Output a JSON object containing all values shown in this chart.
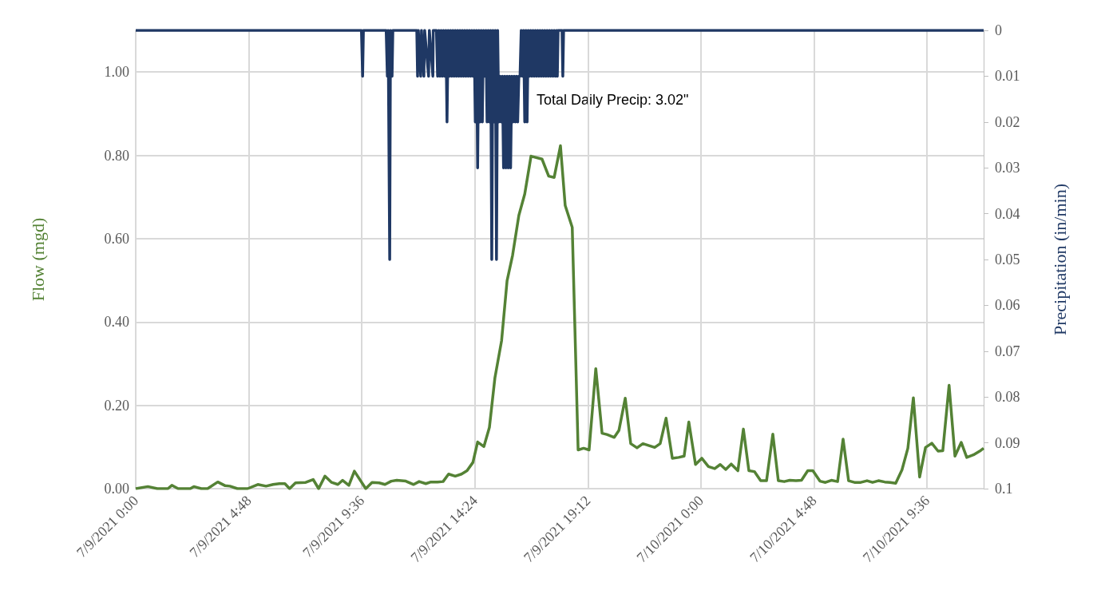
{
  "chart_data": {
    "type": "line",
    "ylabel": "Flow (mgd)",
    "y2label": "Precipitation (in/min)",
    "annotations": [
      "Total Daily Precip: 3.02\""
    ],
    "xlim": [
      "2021-07-09T00:00",
      "2021-07-10T12:00"
    ],
    "xticks": [
      {
        "value": "2021-07-09T00:00",
        "label": "7/9/2021 0:00"
      },
      {
        "value": "2021-07-09T04:48",
        "label": "7/9/2021 4:48"
      },
      {
        "value": "2021-07-09T09:36",
        "label": "7/9/2021 9:36"
      },
      {
        "value": "2021-07-09T14:24",
        "label": "7/9/2021 14:24"
      },
      {
        "value": "2021-07-09T19:12",
        "label": "7/9/2021 19:12"
      },
      {
        "value": "2021-07-10T00:00",
        "label": "7/10/2021 0:00"
      },
      {
        "value": "2021-07-10T04:48",
        "label": "7/10/2021 4:48"
      },
      {
        "value": "2021-07-10T09:36",
        "label": "7/10/2021 9:36"
      }
    ],
    "ylim": [
      0,
      1.1
    ],
    "yticks": [
      {
        "value": 0,
        "label": "0.00"
      },
      {
        "value": 0.2,
        "label": "0.20"
      },
      {
        "value": 0.4,
        "label": "0.40"
      },
      {
        "value": 0.6,
        "label": "0.60"
      },
      {
        "value": 0.8,
        "label": "0.80"
      },
      {
        "value": 1,
        "label": "1.00"
      }
    ],
    "y2lim": [
      0.1,
      0
    ],
    "y2ticks": [
      0,
      0.01,
      0.02,
      0.03,
      0.04,
      0.05,
      0.06,
      0.07,
      0.08,
      0.09,
      0.1
    ],
    "grid": true,
    "marker": "none",
    "line_style": "solid",
    "series": [
      {
        "axis": "y2",
        "color": "#1f3864",
        "x": [
          "2021-07-09T00:00",
          "2021-07-09T09:35",
          "2021-07-09T09:38",
          "2021-07-09T09:40",
          "2021-07-09T10:38",
          "2021-07-09T10:41",
          "2021-07-09T10:43",
          "2021-07-09T10:47",
          "2021-07-09T10:49",
          "2021-07-09T10:53",
          "2021-07-09T10:55",
          "2021-07-09T11:56",
          "2021-07-09T11:58",
          "2021-07-09T12:00",
          "2021-07-09T12:06",
          "2021-07-09T12:08",
          "2021-07-09T12:14",
          "2021-07-09T12:16",
          "2021-07-09T12:26",
          "2021-07-09T12:28",
          "2021-07-09T12:37",
          "2021-07-09T12:38",
          "2021-07-09T12:46",
          "2021-07-09T12:49",
          "2021-07-09T12:52",
          "2021-07-09T12:55",
          "2021-07-09T12:58",
          "2021-07-09T13:01",
          "2021-07-09T13:04",
          "2021-07-09T13:07",
          "2021-07-09T13:10",
          "2021-07-09T13:13",
          "2021-07-09T13:16",
          "2021-07-09T13:19",
          "2021-07-09T13:22",
          "2021-07-09T13:25",
          "2021-07-09T13:28",
          "2021-07-09T13:31",
          "2021-07-09T13:34",
          "2021-07-09T13:37",
          "2021-07-09T13:40",
          "2021-07-09T13:43",
          "2021-07-09T13:46",
          "2021-07-09T13:49",
          "2021-07-09T13:52",
          "2021-07-09T13:55",
          "2021-07-09T13:58",
          "2021-07-09T14:01",
          "2021-07-09T14:04",
          "2021-07-09T14:07",
          "2021-07-09T14:10",
          "2021-07-09T14:13",
          "2021-07-09T14:16",
          "2021-07-09T14:19",
          "2021-07-09T14:22",
          "2021-07-09T14:25",
          "2021-07-09T14:28",
          "2021-07-09T14:31",
          "2021-07-09T14:34",
          "2021-07-09T14:37",
          "2021-07-09T14:40",
          "2021-07-09T14:43",
          "2021-07-09T14:46",
          "2021-07-09T14:49",
          "2021-07-09T14:52",
          "2021-07-09T14:55",
          "2021-07-09T14:58",
          "2021-07-09T15:01",
          "2021-07-09T15:04",
          "2021-07-09T15:07",
          "2021-07-09T15:10",
          "2021-07-09T15:13",
          "2021-07-09T15:16",
          "2021-07-09T15:19",
          "2021-07-09T15:22",
          "2021-07-09T15:25",
          "2021-07-09T15:28",
          "2021-07-09T15:31",
          "2021-07-09T15:34",
          "2021-07-09T15:37",
          "2021-07-09T15:40",
          "2021-07-09T15:43",
          "2021-07-09T15:46",
          "2021-07-09T15:49",
          "2021-07-09T15:52",
          "2021-07-09T15:55",
          "2021-07-09T15:58",
          "2021-07-09T16:01",
          "2021-07-09T16:04",
          "2021-07-09T16:07",
          "2021-07-09T16:10",
          "2021-07-09T16:13",
          "2021-07-09T16:16",
          "2021-07-09T16:19",
          "2021-07-09T16:22",
          "2021-07-09T16:25",
          "2021-07-09T16:28",
          "2021-07-09T16:31",
          "2021-07-09T16:34",
          "2021-07-09T16:37",
          "2021-07-09T16:40",
          "2021-07-09T16:43",
          "2021-07-09T16:46",
          "2021-07-09T16:49",
          "2021-07-09T16:52",
          "2021-07-09T16:55",
          "2021-07-09T16:58",
          "2021-07-09T17:01",
          "2021-07-09T17:04",
          "2021-07-09T17:07",
          "2021-07-09T17:10",
          "2021-07-09T17:13",
          "2021-07-09T17:16",
          "2021-07-09T17:19",
          "2021-07-09T17:22",
          "2021-07-09T17:25",
          "2021-07-09T17:28",
          "2021-07-09T17:31",
          "2021-07-09T17:34",
          "2021-07-09T17:37",
          "2021-07-09T17:40",
          "2021-07-09T17:43",
          "2021-07-09T17:46",
          "2021-07-09T17:49",
          "2021-07-09T17:52",
          "2021-07-09T17:54",
          "2021-07-09T17:56",
          "2021-07-09T18:06",
          "2021-07-09T18:08",
          "2021-07-09T18:10",
          "2021-07-10T12:00"
        ],
        "values": [
          0,
          0,
          0.01,
          0,
          0,
          0.01,
          0,
          0.05,
          0,
          0.01,
          0,
          0,
          0.01,
          0,
          0.01,
          0,
          0.01,
          0,
          0.01,
          0,
          0.01,
          0,
          0,
          0.01,
          0,
          0.01,
          0,
          0.01,
          0,
          0.01,
          0,
          0.02,
          0,
          0.01,
          0,
          0.01,
          0,
          0.01,
          0,
          0.01,
          0,
          0.01,
          0,
          0.01,
          0,
          0.01,
          0,
          0.01,
          0,
          0.01,
          0,
          0.01,
          0,
          0.01,
          0,
          0.02,
          0,
          0.03,
          0,
          0.02,
          0,
          0.02,
          0,
          0.01,
          0,
          0.02,
          0,
          0.02,
          0,
          0.05,
          0,
          0.02,
          0,
          0.05,
          0,
          0.02,
          0.01,
          0.02,
          0.01,
          0.03,
          0.01,
          0.03,
          0.01,
          0.03,
          0.01,
          0.03,
          0.01,
          0.02,
          0.01,
          0.02,
          0.01,
          0.02,
          0.01,
          0.01,
          0,
          0.01,
          0,
          0.02,
          0,
          0.02,
          0,
          0.01,
          0,
          0.01,
          0,
          0.01,
          0,
          0.01,
          0,
          0.01,
          0,
          0.01,
          0,
          0.01,
          0,
          0.01,
          0,
          0.01,
          0,
          0.01,
          0,
          0.01,
          0,
          0.01,
          0,
          0.01,
          0,
          0,
          0.01,
          0,
          0
        ]
      },
      {
        "color": "#548235",
        "x": [
          "2021-07-09T00:00",
          "2021-07-09T00:31",
          "2021-07-09T00:55",
          "2021-07-09T01:22",
          "2021-07-09T01:32",
          "2021-07-09T01:48",
          "2021-07-09T02:19",
          "2021-07-09T02:28",
          "2021-07-09T02:47",
          "2021-07-09T03:03",
          "2021-07-09T03:29",
          "2021-07-09T03:48",
          "2021-07-09T04:00",
          "2021-07-09T04:19",
          "2021-07-09T04:45",
          "2021-07-09T05:11",
          "2021-07-09T05:32",
          "2021-07-09T05:50",
          "2021-07-09T06:06",
          "2021-07-09T06:20",
          "2021-07-09T06:32",
          "2021-07-09T06:47",
          "2021-07-09T07:13",
          "2021-07-09T07:32",
          "2021-07-09T07:46",
          "2021-07-09T08:02",
          "2021-07-09T08:19",
          "2021-07-09T08:35",
          "2021-07-09T08:47",
          "2021-07-09T09:03",
          "2021-07-09T09:17",
          "2021-07-09T09:46",
          "2021-07-09T10:02",
          "2021-07-09T10:20",
          "2021-07-09T10:35",
          "2021-07-09T10:51",
          "2021-07-09T11:05",
          "2021-07-09T11:28",
          "2021-07-09T11:48",
          "2021-07-09T12:02",
          "2021-07-09T12:19",
          "2021-07-09T12:32",
          "2021-07-09T12:49",
          "2021-07-09T13:03",
          "2021-07-09T13:17",
          "2021-07-09T13:34",
          "2021-07-09T13:50",
          "2021-07-09T14:04",
          "2021-07-09T14:19",
          "2021-07-09T14:31",
          "2021-07-09T14:47",
          "2021-07-09T15:01",
          "2021-07-09T15:15",
          "2021-07-09T15:32",
          "2021-07-09T15:46",
          "2021-07-09T16:00",
          "2021-07-09T16:16",
          "2021-07-09T16:31",
          "2021-07-09T16:47",
          "2021-07-09T17:15",
          "2021-07-09T17:32",
          "2021-07-09T17:46",
          "2021-07-09T18:02",
          "2021-07-09T18:14",
          "2021-07-09T18:32",
          "2021-07-09T18:47",
          "2021-07-09T19:01",
          "2021-07-09T19:15",
          "2021-07-09T19:32",
          "2021-07-09T19:48",
          "2021-07-09T20:00",
          "2021-07-09T20:19",
          "2021-07-09T20:31",
          "2021-07-09T20:47",
          "2021-07-09T21:01",
          "2021-07-09T21:17",
          "2021-07-09T21:32",
          "2021-07-09T22:02",
          "2021-07-09T22:16",
          "2021-07-09T22:31",
          "2021-07-09T22:47",
          "2021-07-09T23:03",
          "2021-07-09T23:17",
          "2021-07-09T23:29",
          "2021-07-09T23:46",
          "2021-07-10T00:02",
          "2021-07-10T00:19",
          "2021-07-10T00:35",
          "2021-07-10T00:49",
          "2021-07-10T01:03",
          "2021-07-10T01:17",
          "2021-07-10T01:34",
          "2021-07-10T01:48",
          "2021-07-10T02:02",
          "2021-07-10T02:16",
          "2021-07-10T02:32",
          "2021-07-10T02:47",
          "2021-07-10T03:03",
          "2021-07-10T03:17",
          "2021-07-10T03:32",
          "2021-07-10T03:46",
          "2021-07-10T04:02",
          "2021-07-10T04:16",
          "2021-07-10T04:32",
          "2021-07-10T04:45",
          "2021-07-10T05:03",
          "2021-07-10T05:17",
          "2021-07-10T05:32",
          "2021-07-10T05:48",
          "2021-07-10T06:02",
          "2021-07-10T06:16",
          "2021-07-10T06:31",
          "2021-07-10T06:47",
          "2021-07-10T07:03",
          "2021-07-10T07:17",
          "2021-07-10T07:32",
          "2021-07-10T07:48",
          "2021-07-10T08:02",
          "2021-07-10T08:16",
          "2021-07-10T08:32",
          "2021-07-10T08:47",
          "2021-07-10T09:01",
          "2021-07-10T09:17",
          "2021-07-10T09:32",
          "2021-07-10T09:48",
          "2021-07-10T10:04",
          "2021-07-10T10:16",
          "2021-07-10T10:32",
          "2021-07-10T10:47",
          "2021-07-10T11:03",
          "2021-07-10T11:17",
          "2021-07-10T11:34",
          "2021-07-10T11:50",
          "2021-07-10T12:00"
        ],
        "values": [
          0,
          0.005,
          0,
          0,
          0.008,
          0,
          0,
          0.005,
          0,
          0,
          0.016,
          0.007,
          0.006,
          0,
          0,
          0.01,
          0.006,
          0.01,
          0.012,
          0.012,
          0,
          0.014,
          0.015,
          0.022,
          0,
          0.03,
          0.015,
          0.01,
          0.02,
          0.008,
          0.042,
          0,
          0.015,
          0.014,
          0.01,
          0.018,
          0.02,
          0.018,
          0.01,
          0.017,
          0.012,
          0.016,
          0.016,
          0.017,
          0.035,
          0.03,
          0.035,
          0.043,
          0.063,
          0.112,
          0.101,
          0.147,
          0.266,
          0.355,
          0.499,
          0.56,
          0.656,
          0.707,
          0.798,
          0.791,
          0.75,
          0.747,
          0.823,
          0.68,
          0.627,
          0.093,
          0.097,
          0.093,
          0.288,
          0.133,
          0.13,
          0.123,
          0.14,
          0.217,
          0.108,
          0.098,
          0.108,
          0.099,
          0.108,
          0.169,
          0.073,
          0.075,
          0.078,
          0.16,
          0.058,
          0.073,
          0.053,
          0.048,
          0.058,
          0.046,
          0.059,
          0.043,
          0.143,
          0.043,
          0.041,
          0.019,
          0.019,
          0.131,
          0.019,
          0.017,
          0.02,
          0.019,
          0.02,
          0.043,
          0.043,
          0.018,
          0.015,
          0.02,
          0.017,
          0.119,
          0.019,
          0.015,
          0.015,
          0.019,
          0.015,
          0.019,
          0.016,
          0.015,
          0.013,
          0.045,
          0.097,
          0.218,
          0.028,
          0.099,
          0.109,
          0.09,
          0.091,
          0.248,
          0.078,
          0.111,
          0.075,
          0.081,
          0.09,
          0.097
        ]
      }
    ]
  }
}
